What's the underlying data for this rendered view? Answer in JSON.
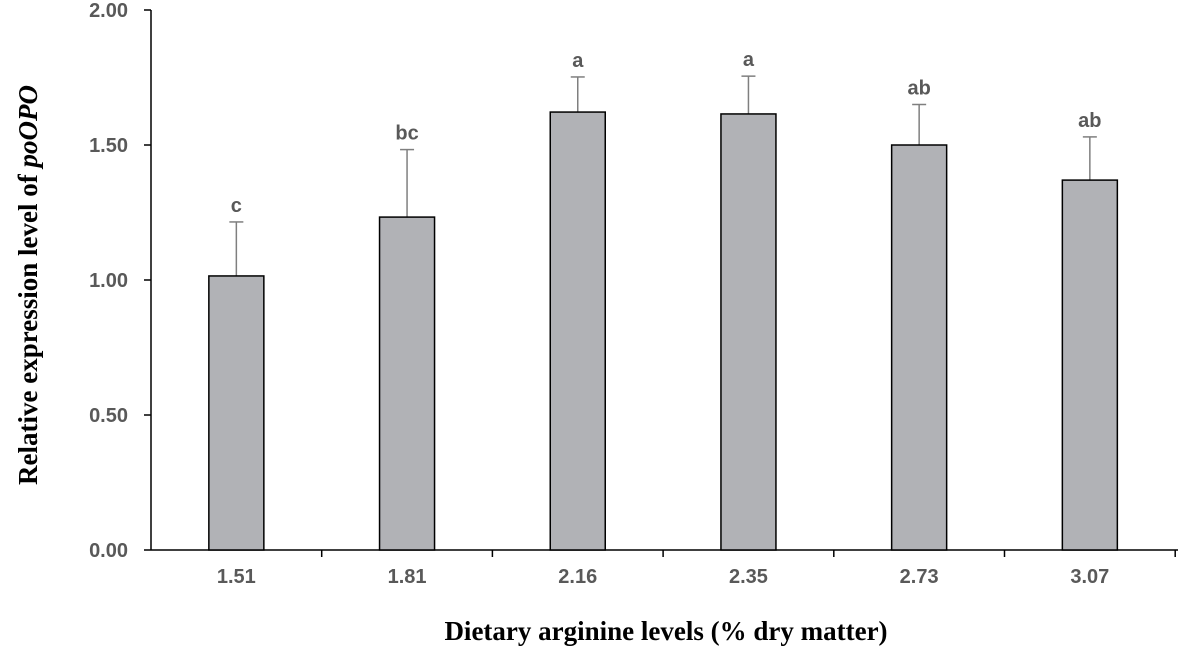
{
  "chart_data": {
    "type": "bar",
    "title": "",
    "xlabel": "Dietary arginine levels (% dry matter)",
    "ylabel_prefix": "Relative expression level of ",
    "ylabel_gene": "poOPO",
    "categories": [
      "1.51",
      "1.81",
      "2.16",
      "2.35",
      "2.73",
      "3.07"
    ],
    "values": [
      1.015,
      1.233,
      1.622,
      1.615,
      1.5,
      1.37
    ],
    "error_upper": [
      0.2,
      0.25,
      0.13,
      0.14,
      0.15,
      0.16
    ],
    "significance_labels": [
      "c",
      "bc",
      "a",
      "a",
      "ab",
      "ab"
    ],
    "ylim": [
      0,
      2.0
    ],
    "yticks": [
      "0.00",
      "0.50",
      "1.00",
      "1.50",
      "2.00"
    ],
    "grid": false,
    "bar_color": "#b1b2b6"
  }
}
